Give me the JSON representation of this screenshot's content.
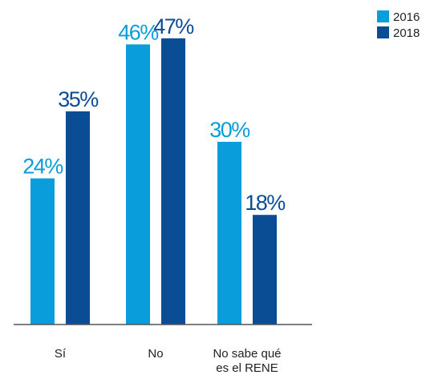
{
  "chart_data": {
    "type": "bar",
    "categories": [
      [
        "Sí"
      ],
      [
        "No"
      ],
      [
        "No sabe qué",
        "es el RENE"
      ]
    ],
    "series": [
      {
        "name": "2016",
        "values": [
          24,
          46,
          30
        ],
        "labels": [
          "24%",
          "46%",
          "30%"
        ],
        "color": "#0a9ddb"
      },
      {
        "name": "2018",
        "values": [
          35,
          47,
          18
        ],
        "labels": [
          "35%",
          "47%",
          "18%"
        ],
        "color": "#0b4d94"
      }
    ],
    "ylim": [
      0,
      100
    ],
    "grid": false,
    "legend_position": "top-right",
    "baseline_color": "#555555"
  }
}
